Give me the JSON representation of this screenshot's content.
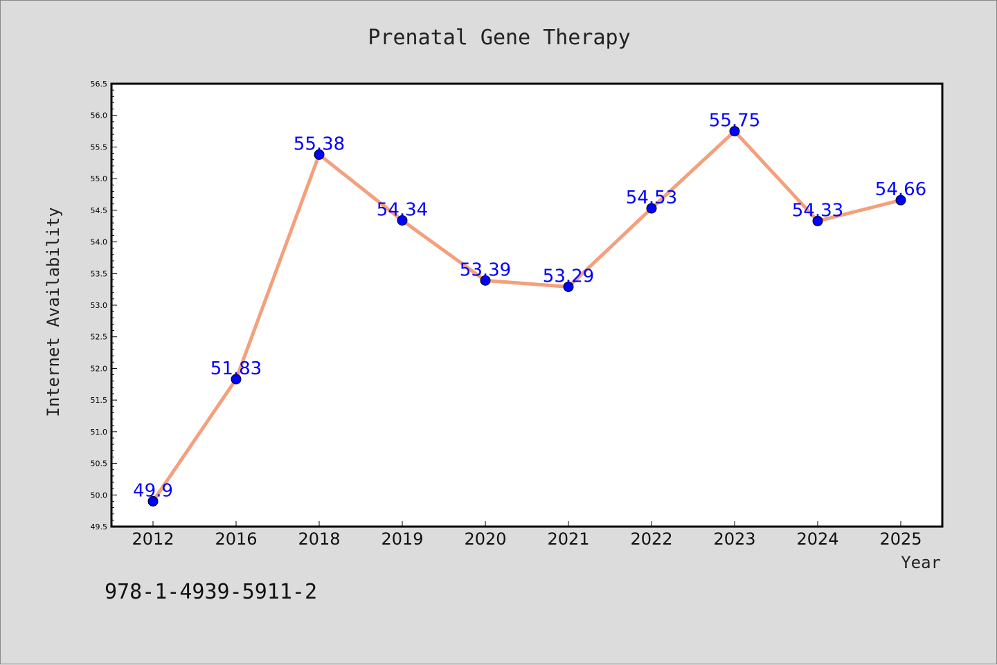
{
  "chart_data": {
    "type": "line",
    "title": "Prenatal Gene Therapy",
    "xlabel": "Year",
    "ylabel": "Internet Availability",
    "categories": [
      "2012",
      "2016",
      "2018",
      "2019",
      "2020",
      "2021",
      "2022",
      "2023",
      "2024",
      "2025"
    ],
    "series": [
      {
        "values": [
          49.9,
          51.83,
          55.38,
          54.34,
          53.39,
          53.29,
          54.53,
          55.75,
          54.33,
          54.66
        ],
        "labels": [
          "49.9",
          "51.83",
          "55.38",
          "54.34",
          "53.39",
          "53.29",
          "54.53",
          "55.75",
          "54.33",
          "54.66"
        ],
        "line_color": "#f4a07c",
        "marker_color": "#0000ff"
      }
    ],
    "ylim": [
      49.5,
      56.5
    ],
    "yticks": [
      "49.5",
      "50.0",
      "50.5",
      "51.0",
      "51.5",
      "52.0",
      "52.5",
      "53.0",
      "53.5",
      "54.0",
      "54.5",
      "55.0",
      "55.5",
      "56.0",
      "56.5"
    ],
    "grid": false,
    "legend": "none",
    "data_label_color": "#0000ff"
  },
  "footer": {
    "isbn": "978-1-4939-5911-2"
  }
}
